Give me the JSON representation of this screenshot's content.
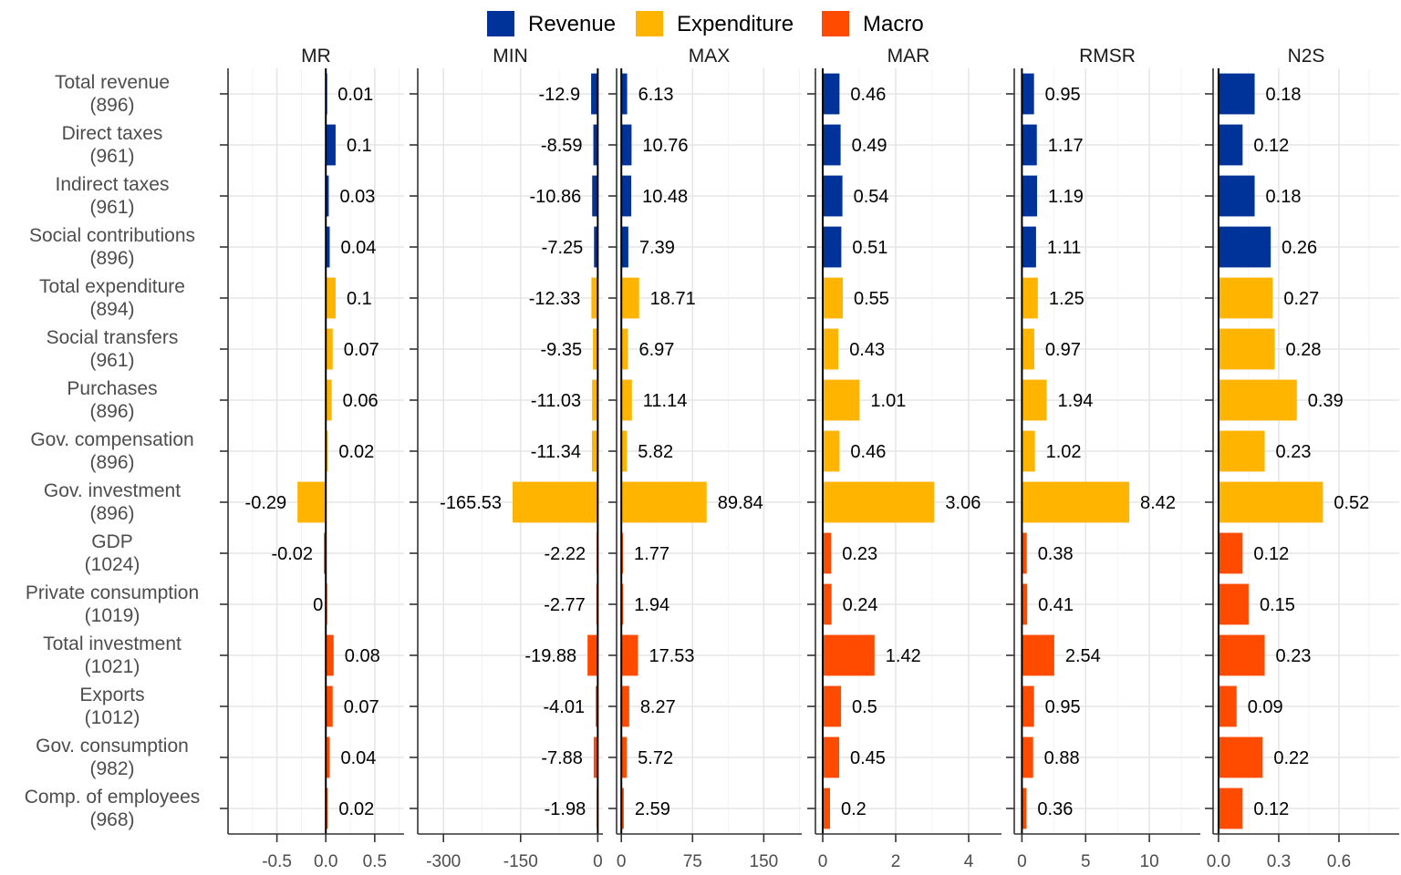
{
  "chart_data": {
    "type": "bar",
    "orientation": "horizontal",
    "legend": {
      "placement": "top",
      "entries": [
        {
          "name": "Revenue",
          "color": "#003399"
        },
        {
          "name": "Expenditure",
          "color": "#FFB400"
        },
        {
          "name": "Macro",
          "color": "#FF4B00"
        }
      ]
    },
    "categories": [
      {
        "label": "Total revenue",
        "count": "(896)",
        "group": "Revenue"
      },
      {
        "label": "Direct taxes",
        "count": "(961)",
        "group": "Revenue"
      },
      {
        "label": "Indirect taxes",
        "count": "(961)",
        "group": "Revenue"
      },
      {
        "label": "Social contributions",
        "count": "(896)",
        "group": "Revenue"
      },
      {
        "label": "Total expenditure",
        "count": "(894)",
        "group": "Expenditure"
      },
      {
        "label": "Social transfers",
        "count": "(961)",
        "group": "Expenditure"
      },
      {
        "label": "Purchases",
        "count": "(896)",
        "group": "Expenditure"
      },
      {
        "label": "Gov. compensation",
        "count": "(896)",
        "group": "Expenditure"
      },
      {
        "label": "Gov. investment",
        "count": "(896)",
        "group": "Expenditure"
      },
      {
        "label": "GDP",
        "count": "(1024)",
        "group": "Macro"
      },
      {
        "label": "Private consumption",
        "count": "(1019)",
        "group": "Macro"
      },
      {
        "label": "Total investment",
        "count": "(1021)",
        "group": "Macro"
      },
      {
        "label": "Exports",
        "count": "(1012)",
        "group": "Macro"
      },
      {
        "label": "Gov. consumption",
        "count": "(982)",
        "group": "Macro"
      },
      {
        "label": "Comp. of employees",
        "count": "(968)",
        "group": "Macro"
      }
    ],
    "panels": [
      {
        "title": "MR",
        "xlim": [
          -1.0,
          0.8
        ],
        "ticks": [
          -0.5,
          0.0,
          0.5
        ],
        "tick_labels": [
          "-0.5",
          "0.0",
          "0.5"
        ],
        "values": [
          0.01,
          0.1,
          0.03,
          0.04,
          0.1,
          0.07,
          0.06,
          0.02,
          -0.29,
          -0.02,
          0,
          0.08,
          0.07,
          0.04,
          0.02
        ],
        "labels": [
          "0.01",
          "0.1",
          "0.03",
          "0.04",
          "0.1",
          "0.07",
          "0.06",
          "0.02",
          "-0.29",
          "-0.02",
          "0",
          "0.08",
          "0.07",
          "0.04",
          "0.02"
        ]
      },
      {
        "title": "MIN",
        "xlim": [
          -350,
          10
        ],
        "ticks": [
          -300,
          -150,
          0
        ],
        "tick_labels": [
          "-300",
          "-150",
          "0"
        ],
        "values": [
          -12.9,
          -8.59,
          -10.86,
          -7.25,
          -12.33,
          -9.35,
          -11.03,
          -11.34,
          -165.53,
          -2.22,
          -2.77,
          -19.88,
          -4.01,
          -7.88,
          -1.98
        ],
        "labels": [
          "-12.9",
          "-8.59",
          "-10.86",
          "-7.25",
          "-12.33",
          "-9.35",
          "-11.03",
          "-11.34",
          "-165.53",
          "-2.22",
          "-2.77",
          "-19.88",
          "-4.01",
          "-7.88",
          "-1.98"
        ]
      },
      {
        "title": "MAX",
        "xlim": [
          -5,
          190
        ],
        "ticks": [
          0,
          75,
          150
        ],
        "tick_labels": [
          "0",
          "75",
          "150"
        ],
        "values": [
          6.13,
          10.76,
          10.48,
          7.39,
          18.71,
          6.97,
          11.14,
          5.82,
          89.84,
          1.77,
          1.94,
          17.53,
          8.27,
          5.72,
          2.59
        ],
        "labels": [
          "6.13",
          "10.76",
          "10.48",
          "7.39",
          "18.71",
          "6.97",
          "11.14",
          "5.82",
          "89.84",
          "1.77",
          "1.94",
          "17.53",
          "8.27",
          "5.72",
          "2.59"
        ]
      },
      {
        "title": "MAR",
        "xlim": [
          -0.2,
          4.9
        ],
        "ticks": [
          0,
          2,
          4
        ],
        "tick_labels": [
          "0",
          "2",
          "4"
        ],
        "values": [
          0.46,
          0.49,
          0.54,
          0.51,
          0.55,
          0.43,
          1.01,
          0.46,
          3.06,
          0.23,
          0.24,
          1.42,
          0.5,
          0.45,
          0.2
        ],
        "labels": [
          "0.46",
          "0.49",
          "0.54",
          "0.51",
          "0.55",
          "0.43",
          "1.01",
          "0.46",
          "3.06",
          "0.23",
          "0.24",
          "1.42",
          "0.5",
          "0.45",
          "0.2"
        ]
      },
      {
        "title": "RMSR",
        "xlim": [
          -0.6,
          14.0
        ],
        "ticks": [
          0,
          5,
          10
        ],
        "tick_labels": [
          "0",
          "5",
          "10"
        ],
        "values": [
          0.95,
          1.17,
          1.19,
          1.11,
          1.25,
          0.97,
          1.94,
          1.02,
          8.42,
          0.38,
          0.41,
          2.54,
          0.95,
          0.88,
          0.36
        ],
        "labels": [
          "0.95",
          "1.17",
          "1.19",
          "1.11",
          "1.25",
          "0.97",
          "1.94",
          "1.02",
          "8.42",
          "0.38",
          "0.41",
          "2.54",
          "0.95",
          "0.88",
          "0.36"
        ]
      },
      {
        "title": "N2S",
        "xlim": [
          -0.027,
          0.9
        ],
        "ticks": [
          0.0,
          0.3,
          0.6
        ],
        "tick_labels": [
          "0.0",
          "0.3",
          "0.6"
        ],
        "values": [
          0.18,
          0.12,
          0.18,
          0.26,
          0.27,
          0.28,
          0.39,
          0.23,
          0.52,
          0.12,
          0.15,
          0.23,
          0.09,
          0.22,
          0.12
        ],
        "labels": [
          "0.18",
          "0.12",
          "0.18",
          "0.26",
          "0.27",
          "0.28",
          "0.39",
          "0.23",
          "0.52",
          "0.12",
          "0.15",
          "0.23",
          "0.09",
          "0.22",
          "0.12"
        ]
      }
    ],
    "grid": true
  }
}
